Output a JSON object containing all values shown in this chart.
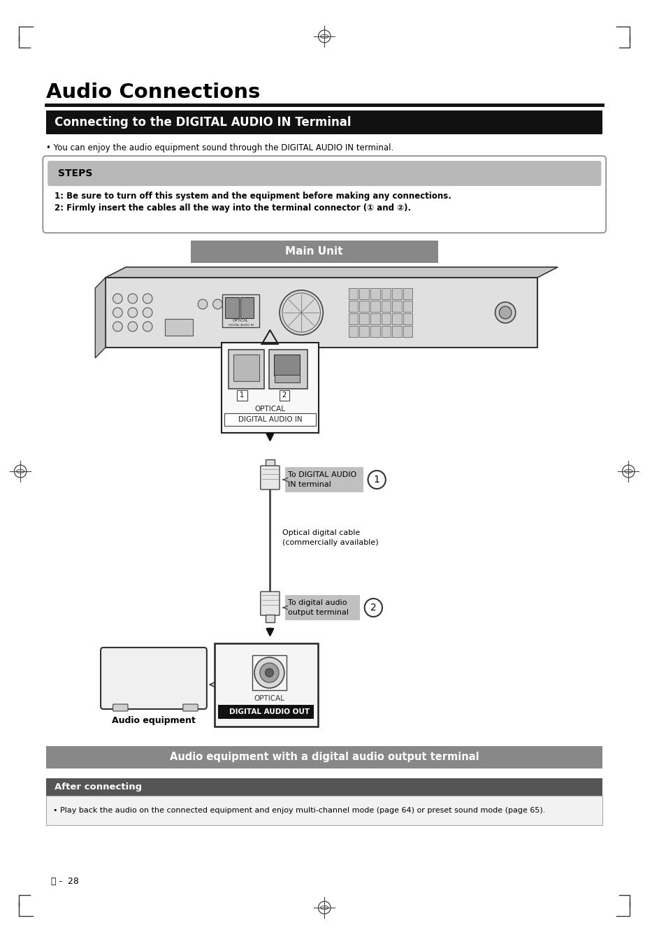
{
  "page_bg": "#ffffff",
  "title": "Audio Connections",
  "section_header": "Connecting to the DIGITAL AUDIO IN Terminal",
  "section_header_bg": "#111111",
  "section_header_color": "#ffffff",
  "bullet1": "• You can enjoy the audio equipment sound through the DIGITAL AUDIO IN terminal.",
  "steps_title": "STEPS",
  "step1": "1: Be sure to turn off this system and the equipment before making any connections.",
  "step2": "2: Firmly insert the cables all the way into the terminal connector (① and ②).",
  "main_unit_label": "Main Unit",
  "optical_label1": "OPTICAL",
  "optical_label2": "DIGITAL AUDIO IN",
  "label_to_digital": "To DIGITAL AUDIO\nIN terminal",
  "label_optical_cable": "Optical digital cable\n(commercially available)",
  "label_to_audio_out": "To digital audio\noutput terminal",
  "label_audio_eq": "Audio equipment",
  "optical_label_bottom1": "OPTICAL",
  "optical_label_bottom2": "DIGITAL AUDIO OUT",
  "bottom_banner": "Audio equipment with a digital audio output terminal",
  "after_connecting_header": "After connecting",
  "after_text": "• Play back the audio on the connected equipment and enjoy multi-channel mode (page 64) or preset sound mode (page 65).",
  "page_number": "ⓔ -  28"
}
